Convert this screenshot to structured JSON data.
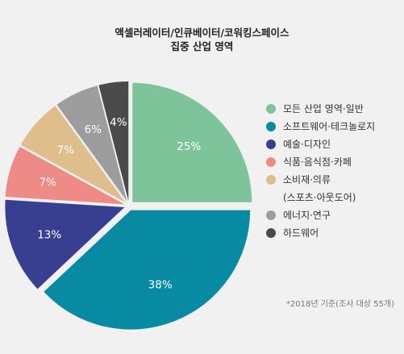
{
  "title": {
    "line1": "액셀러레이터/인큐베이터/코워킹스페이스",
    "line2": "집중 산업 영역"
  },
  "footnote": "*2018년 기준(조사 대상 55개)",
  "chart_data": {
    "type": "pie",
    "title": "액셀러레이터/인큐베이터/코워킹스페이스 집중 산업 영역",
    "slices": [
      {
        "name": "모든 산업 영역·일반",
        "value": 25,
        "label": "25%",
        "color": "#7ec49a"
      },
      {
        "name": "소프트웨어·테크놀로지",
        "value": 38,
        "label": "38%",
        "color": "#098aa3"
      },
      {
        "name": "예술·디자인",
        "value": 13,
        "label": "13%",
        "color": "#383f91"
      },
      {
        "name": "식품·음식점·카페",
        "value": 7,
        "label": "7%",
        "color": "#ef8b86"
      },
      {
        "name": "소비재·의류",
        "value": 7,
        "label": "7%",
        "color": "#dfbe8b"
      },
      {
        "name": "에너지·연구",
        "value": 6,
        "label": "6%",
        "color": "#9d9d9d"
      },
      {
        "name": "하드웨어",
        "value": 4,
        "label": "4%",
        "color": "#4a4a4a"
      }
    ],
    "legend": {
      "position": "right",
      "items": [
        {
          "label": "모든 산업 영역·일반",
          "color": "#7ec49a"
        },
        {
          "label": "소프트웨어·테크놀로지",
          "color": "#098aa3"
        },
        {
          "label": "예술·디자인",
          "color": "#383f91"
        },
        {
          "label": "식품·음식점·카페",
          "color": "#ef8b86"
        },
        {
          "label": "소비재·의류",
          "color": "#dfbe8b"
        },
        {
          "label": "(스포츠·아웃도어)",
          "color": ""
        },
        {
          "label": "에너지·연구",
          "color": "#9d9d9d"
        },
        {
          "label": "하드웨어",
          "color": "#4a4a4a"
        }
      ]
    }
  }
}
